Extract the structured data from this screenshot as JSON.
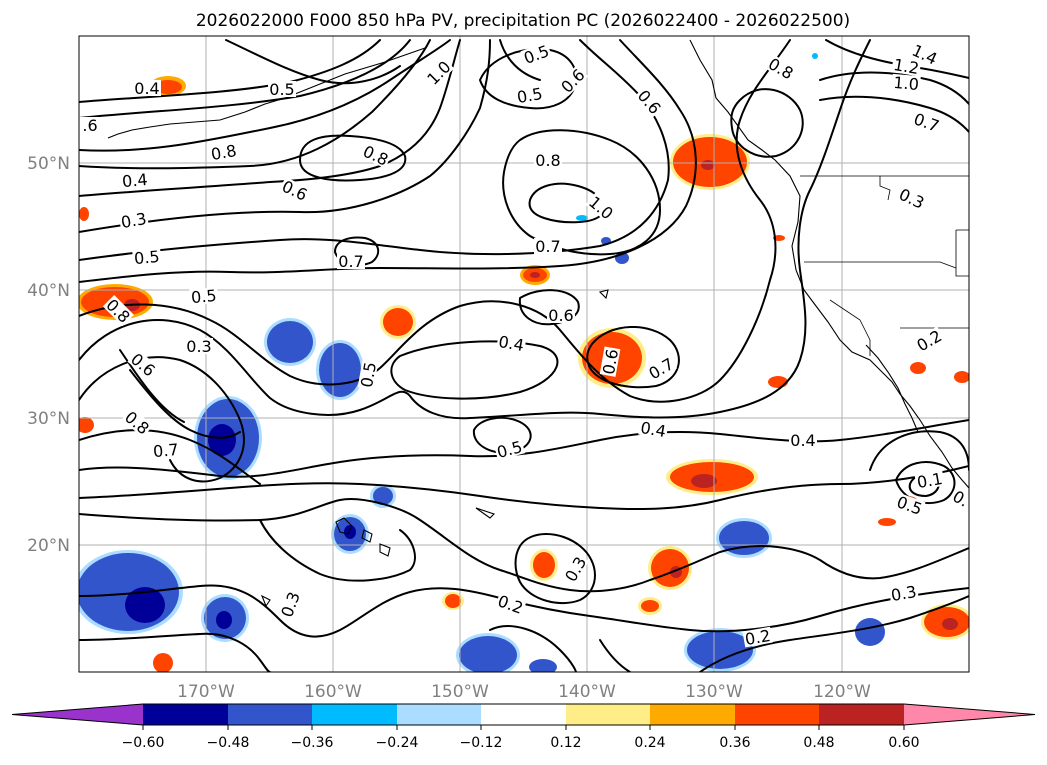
{
  "title": "2026022000 F000 850 hPa PV, precipitation PC (2026022400 - 2026022500)",
  "map": {
    "lon_range": [
      -180,
      -110
    ],
    "lat_range": [
      10,
      60
    ],
    "lat_ticks": [
      "20°N",
      "30°N",
      "40°N",
      "50°N"
    ],
    "lon_ticks": [
      "170°W",
      "160°W",
      "150°W",
      "140°W",
      "130°W",
      "120°W"
    ],
    "gridlines": true
  },
  "colorbar": {
    "tick_labels": [
      "−0.60",
      "−0.48",
      "−0.36",
      "−0.24",
      "−0.12",
      "0.12",
      "0.24",
      "0.36",
      "0.48",
      "0.60"
    ],
    "colors": [
      "#9933cc",
      "#000099",
      "#3355cc",
      "#00bbff",
      "#aaddff",
      "#ffffff",
      "#ffee88",
      "#ffaa00",
      "#ff4400",
      "#bb2222",
      "#ff88aa"
    ],
    "extend": "both"
  },
  "pv_contour_labels": [
    {
      "name": "pv-label-0-4-nw",
      "text": "0.4"
    },
    {
      "name": "pv-label-0-5-top",
      "text": "0.5"
    },
    {
      "name": "pv-label-1-0-top",
      "text": "1.0"
    },
    {
      "name": "pv-label-0-5-ne",
      "text": "0.5"
    },
    {
      "name": "pv-label-0-5-ne2",
      "text": "0.5"
    },
    {
      "name": "pv-label-0-6-ne",
      "text": "0.6"
    },
    {
      "name": "pv-label-0-6-ne2",
      "text": "0.6"
    },
    {
      "name": "pv-label-0-8-ne",
      "text": "0.8"
    },
    {
      "name": "pv-label-1-4",
      "text": "1.4"
    },
    {
      "name": "pv-label-1-2",
      "text": "1.2"
    },
    {
      "name": "pv-label-1-0-ne",
      "text": "1.0"
    },
    {
      "name": "pv-label-0-7-ne",
      "text": "0.7"
    },
    {
      "name": "pv-label-0-6-west",
      "text": ".6"
    },
    {
      "name": "pv-label-0-8-w",
      "text": "0.8"
    },
    {
      "name": "pv-label-0-8-center",
      "text": "0.8"
    },
    {
      "name": "pv-label-0-8-mid",
      "text": "0.8"
    },
    {
      "name": "pv-label-0-4-w",
      "text": "0.4"
    },
    {
      "name": "pv-label-0-6-w",
      "text": "0.6"
    },
    {
      "name": "pv-label-1-0-mid",
      "text": "1.0"
    },
    {
      "name": "pv-label-0-3-w",
      "text": "0.3"
    },
    {
      "name": "pv-label-0-3-coast",
      "text": "0.3"
    },
    {
      "name": "pv-label-0-7-mid",
      "text": "0.7"
    },
    {
      "name": "pv-label-0-7-center",
      "text": "0.7"
    },
    {
      "name": "pv-label-0-5-w",
      "text": "0.5"
    },
    {
      "name": "pv-label-0-5-w2",
      "text": "0.5"
    },
    {
      "name": "pv-label-0-8-sw",
      "text": "0.8"
    },
    {
      "name": "pv-label-0-6-c",
      "text": "0.6"
    },
    {
      "name": "pv-label-0-3-sw",
      "text": "0.3"
    },
    {
      "name": "pv-label-0-4-c",
      "text": "0.4"
    },
    {
      "name": "pv-label-0-6-sw",
      "text": "0.6"
    },
    {
      "name": "pv-label-0-5-c",
      "text": "0.5"
    },
    {
      "name": "pv-label-0-6-rot",
      "text": "0.6"
    },
    {
      "name": "pv-label-0-7-c",
      "text": "0.7"
    },
    {
      "name": "pv-label-0-2-e",
      "text": "0.2"
    },
    {
      "name": "pv-label-0-8-sw2",
      "text": "0.8"
    },
    {
      "name": "pv-label-0-7-sw",
      "text": "0.7"
    },
    {
      "name": "pv-label-0-4-s",
      "text": "0.4"
    },
    {
      "name": "pv-label-0-4-se",
      "text": "0.4"
    },
    {
      "name": "pv-label-0-5-s",
      "text": "0.5"
    },
    {
      "name": "pv-label-0-1-se",
      "text": "0.1"
    },
    {
      "name": "pv-label-0-5-se",
      "text": "0.5"
    },
    {
      "name": "pv-label-0-9-se",
      "text": "0."
    },
    {
      "name": "pv-label-0-3-south",
      "text": "0.3"
    },
    {
      "name": "pv-label-0-3-ssw",
      "text": "0.3"
    },
    {
      "name": "pv-label-0-2-south",
      "text": "0.2"
    },
    {
      "name": "pv-label-0-3-se",
      "text": "0.3"
    },
    {
      "name": "pv-label-0-2-se",
      "text": "0.2"
    }
  ]
}
